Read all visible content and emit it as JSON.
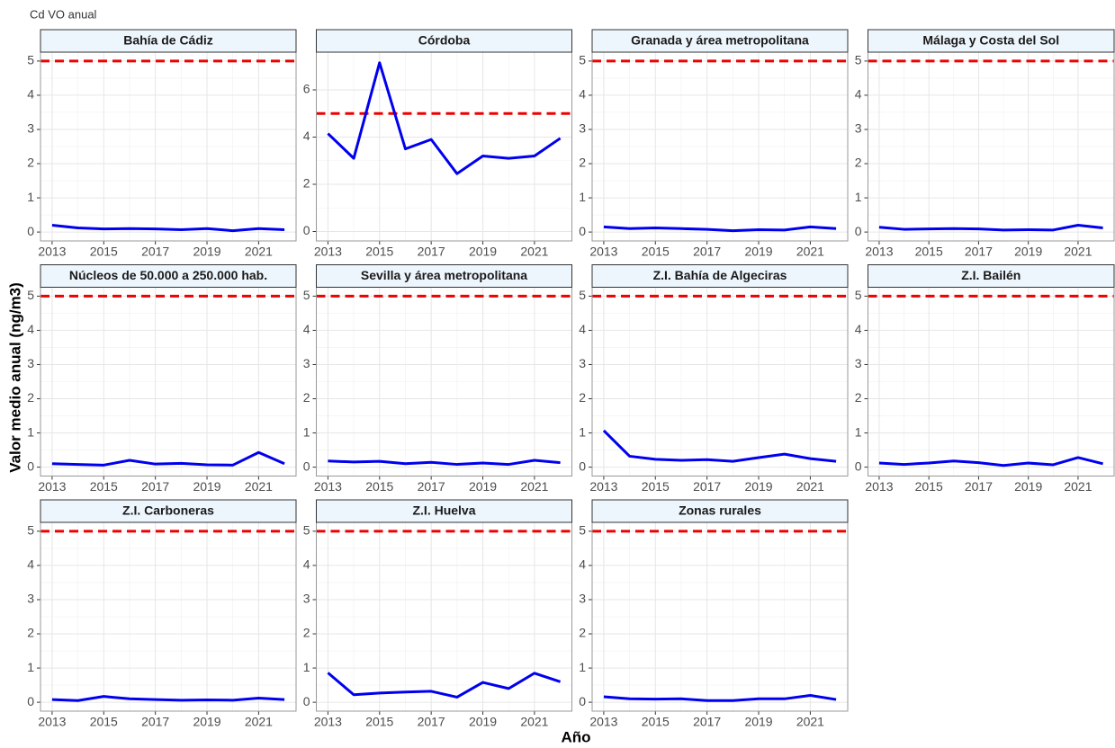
{
  "title": "Cd VO anual",
  "x_label": "Año",
  "y_label": "Valor medio anual (ng/m3)",
  "chart_data": [
    {
      "type": "line",
      "title": "Bahía de Cádiz",
      "x": [
        2013,
        2014,
        2015,
        2016,
        2017,
        2018,
        2019,
        2020,
        2021,
        2022
      ],
      "values": [
        0.2,
        0.12,
        0.09,
        0.1,
        0.09,
        0.07,
        0.1,
        0.04,
        0.1,
        0.07
      ],
      "color": "#0000ee",
      "threshold": 5,
      "threshold_color": "#ee0000",
      "xlim": [
        2012.55,
        2022.45
      ],
      "xticks": [
        2013,
        2015,
        2017,
        2019,
        2021
      ],
      "ylim": [
        -0.26,
        5.26
      ],
      "yticks": [
        0,
        1,
        2,
        3,
        4,
        5
      ],
      "grid": true
    },
    {
      "type": "line",
      "title": "Córdoba",
      "x": [
        2013,
        2014,
        2015,
        2016,
        2017,
        2018,
        2019,
        2020,
        2021,
        2022
      ],
      "values": [
        4.15,
        3.1,
        7.15,
        3.5,
        3.9,
        2.45,
        3.2,
        3.1,
        3.2,
        3.95
      ],
      "color": "#0000ee",
      "threshold": 5,
      "threshold_color": "#ee0000",
      "xlim": [
        2012.55,
        2022.45
      ],
      "xticks": [
        2013,
        2015,
        2017,
        2019,
        2021
      ],
      "ylim": [
        -0.4,
        7.6
      ],
      "yticks": [
        0,
        2,
        4,
        6
      ],
      "grid": true
    },
    {
      "type": "line",
      "title": "Granada y área metropolitana",
      "x": [
        2013,
        2014,
        2015,
        2016,
        2017,
        2018,
        2019,
        2020,
        2021,
        2022
      ],
      "values": [
        0.15,
        0.1,
        0.12,
        0.1,
        0.08,
        0.04,
        0.07,
        0.06,
        0.15,
        0.1
      ],
      "color": "#0000ee",
      "threshold": 5,
      "threshold_color": "#ee0000",
      "xlim": [
        2012.55,
        2022.45
      ],
      "xticks": [
        2013,
        2015,
        2017,
        2019,
        2021
      ],
      "ylim": [
        -0.26,
        5.26
      ],
      "yticks": [
        0,
        1,
        2,
        3,
        4,
        5
      ],
      "grid": true
    },
    {
      "type": "line",
      "title": "Málaga y Costa del Sol",
      "x": [
        2013,
        2014,
        2015,
        2016,
        2017,
        2018,
        2019,
        2020,
        2021,
        2022
      ],
      "values": [
        0.14,
        0.08,
        0.09,
        0.1,
        0.09,
        0.06,
        0.07,
        0.06,
        0.2,
        0.12
      ],
      "color": "#0000ee",
      "threshold": 5,
      "threshold_color": "#ee0000",
      "xlim": [
        2012.55,
        2022.45
      ],
      "xticks": [
        2013,
        2015,
        2017,
        2019,
        2021
      ],
      "ylim": [
        -0.26,
        5.26
      ],
      "yticks": [
        0,
        1,
        2,
        3,
        4,
        5
      ],
      "grid": true
    },
    {
      "type": "line",
      "title": "Núcleos de 50.000 a 250.000 hab.",
      "x": [
        2013,
        2014,
        2015,
        2016,
        2017,
        2018,
        2019,
        2020,
        2021,
        2022
      ],
      "values": [
        0.1,
        0.08,
        0.06,
        0.2,
        0.09,
        0.11,
        0.07,
        0.06,
        0.43,
        0.1
      ],
      "color": "#0000ee",
      "threshold": 5,
      "threshold_color": "#ee0000",
      "xlim": [
        2012.55,
        2022.45
      ],
      "xticks": [
        2013,
        2015,
        2017,
        2019,
        2021
      ],
      "ylim": [
        -0.26,
        5.26
      ],
      "yticks": [
        0,
        1,
        2,
        3,
        4,
        5
      ],
      "grid": true
    },
    {
      "type": "line",
      "title": "Sevilla y área metropolitana",
      "x": [
        2013,
        2014,
        2015,
        2016,
        2017,
        2018,
        2019,
        2020,
        2021,
        2022
      ],
      "values": [
        0.18,
        0.15,
        0.17,
        0.1,
        0.14,
        0.08,
        0.12,
        0.08,
        0.2,
        0.13
      ],
      "color": "#0000ee",
      "threshold": 5,
      "threshold_color": "#ee0000",
      "xlim": [
        2012.55,
        2022.45
      ],
      "xticks": [
        2013,
        2015,
        2017,
        2019,
        2021
      ],
      "ylim": [
        -0.26,
        5.26
      ],
      "yticks": [
        0,
        1,
        2,
        3,
        4,
        5
      ],
      "grid": true
    },
    {
      "type": "line",
      "title": "Z.I. Bahía de Algeciras",
      "x": [
        2013,
        2014,
        2015,
        2016,
        2017,
        2018,
        2019,
        2020,
        2021,
        2022
      ],
      "values": [
        1.07,
        0.32,
        0.23,
        0.2,
        0.22,
        0.17,
        0.28,
        0.38,
        0.25,
        0.17
      ],
      "color": "#0000ee",
      "threshold": 5,
      "threshold_color": "#ee0000",
      "xlim": [
        2012.55,
        2022.45
      ],
      "xticks": [
        2013,
        2015,
        2017,
        2019,
        2021
      ],
      "ylim": [
        -0.26,
        5.26
      ],
      "yticks": [
        0,
        1,
        2,
        3,
        4,
        5
      ],
      "grid": true
    },
    {
      "type": "line",
      "title": "Z.I. Bailén",
      "x": [
        2013,
        2014,
        2015,
        2016,
        2017,
        2018,
        2019,
        2020,
        2021,
        2022
      ],
      "values": [
        0.12,
        0.08,
        0.12,
        0.18,
        0.13,
        0.05,
        0.12,
        0.07,
        0.28,
        0.1
      ],
      "color": "#0000ee",
      "threshold": 5,
      "threshold_color": "#ee0000",
      "xlim": [
        2012.55,
        2022.45
      ],
      "xticks": [
        2013,
        2015,
        2017,
        2019,
        2021
      ],
      "ylim": [
        -0.26,
        5.26
      ],
      "yticks": [
        0,
        1,
        2,
        3,
        4,
        5
      ],
      "grid": true
    },
    {
      "type": "line",
      "title": "Z.I. Carboneras",
      "x": [
        2013,
        2014,
        2015,
        2016,
        2017,
        2018,
        2019,
        2020,
        2021,
        2022
      ],
      "values": [
        0.08,
        0.05,
        0.17,
        0.1,
        0.08,
        0.06,
        0.07,
        0.06,
        0.12,
        0.08
      ],
      "color": "#0000ee",
      "threshold": 5,
      "threshold_color": "#ee0000",
      "xlim": [
        2012.55,
        2022.45
      ],
      "xticks": [
        2013,
        2015,
        2017,
        2019,
        2021
      ],
      "ylim": [
        -0.26,
        5.26
      ],
      "yticks": [
        0,
        1,
        2,
        3,
        4,
        5
      ],
      "grid": true
    },
    {
      "type": "line",
      "title": "Z.I. Huelva",
      "x": [
        2013,
        2014,
        2015,
        2016,
        2017,
        2018,
        2019,
        2020,
        2021,
        2022
      ],
      "values": [
        0.86,
        0.22,
        0.27,
        0.3,
        0.32,
        0.15,
        0.58,
        0.4,
        0.85,
        0.6
      ],
      "color": "#0000ee",
      "threshold": 5,
      "threshold_color": "#ee0000",
      "xlim": [
        2012.55,
        2022.45
      ],
      "xticks": [
        2013,
        2015,
        2017,
        2019,
        2021
      ],
      "ylim": [
        -0.26,
        5.26
      ],
      "yticks": [
        0,
        1,
        2,
        3,
        4,
        5
      ],
      "grid": true
    },
    {
      "type": "line",
      "title": "Zonas rurales",
      "x": [
        2013,
        2014,
        2015,
        2016,
        2017,
        2018,
        2019,
        2020,
        2021,
        2022
      ],
      "values": [
        0.16,
        0.1,
        0.09,
        0.1,
        0.05,
        0.05,
        0.1,
        0.1,
        0.2,
        0.08
      ],
      "color": "#0000ee",
      "threshold": 5,
      "threshold_color": "#ee0000",
      "xlim": [
        2012.55,
        2022.45
      ],
      "xticks": [
        2013,
        2015,
        2017,
        2019,
        2021
      ],
      "ylim": [
        -0.26,
        5.26
      ],
      "yticks": [
        0,
        1,
        2,
        3,
        4,
        5
      ],
      "grid": true
    }
  ]
}
